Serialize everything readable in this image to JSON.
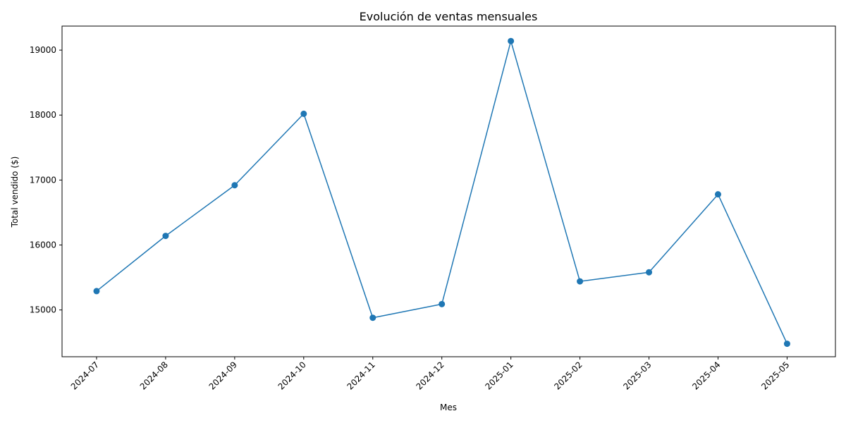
{
  "chart_data": {
    "type": "line",
    "title": "Evolución de ventas mensuales",
    "xlabel": "Mes",
    "ylabel": "Total vendido ($)",
    "categories": [
      "2024-07",
      "2024-08",
      "2024-09",
      "2024-10",
      "2024-11",
      "2024-12",
      "2025-01",
      "2025-02",
      "2025-03",
      "2025-04",
      "2025-05"
    ],
    "series": [
      {
        "values": [
          15290,
          16140,
          16920,
          18020,
          14880,
          15090,
          19140,
          15440,
          15580,
          16780,
          14480
        ],
        "color": "#1f77b4",
        "marker": "circle"
      }
    ],
    "yticks": [
      15000,
      16000,
      17000,
      18000,
      19000
    ],
    "ylim": [
      14280,
      19370
    ],
    "grid": false,
    "legend": "none",
    "x_tick_rotation": 45
  }
}
